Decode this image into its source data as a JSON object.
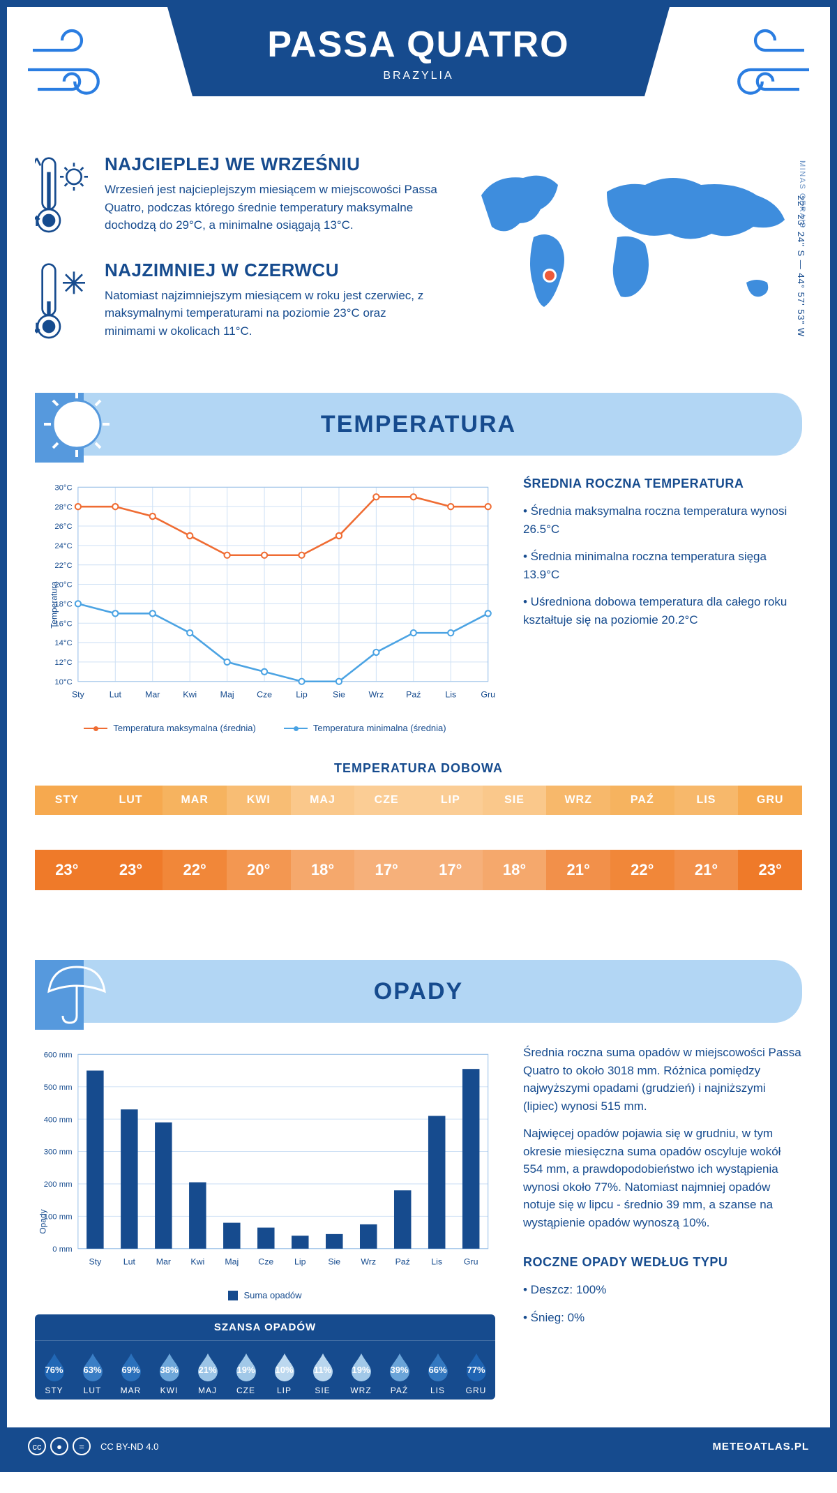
{
  "header": {
    "city": "PASSA QUATRO",
    "country": "BRAZYLIA"
  },
  "intro": {
    "hot": {
      "title": "NAJCIEPLEJ WE WRZEŚNIU",
      "text": "Wrzesień jest najcieplejszym miesiącem w miejscowości Passa Quatro, podczas którego średnie temperatury maksymalne dochodzą do 29°C, a minimalne osiągają 13°C."
    },
    "cold": {
      "title": "NAJZIMNIEJ W CZERWCU",
      "text": "Natomiast najzimniejszym miesiącem w roku jest czerwiec, z maksymalnymi temperaturami na poziomie 23°C oraz minimami w okolicach 11°C."
    },
    "region": "MINAS GERAIS",
    "coords": "22° 23' 24\" S — 44° 57' 53\" W"
  },
  "sections": {
    "temperature": "TEMPERATURA",
    "precipitation": "OPADY"
  },
  "months": [
    "Sty",
    "Lut",
    "Mar",
    "Kwi",
    "Maj",
    "Cze",
    "Lip",
    "Sie",
    "Wrz",
    "Paź",
    "Lis",
    "Gru"
  ],
  "months_upper": [
    "STY",
    "LUT",
    "MAR",
    "KWI",
    "MAJ",
    "CZE",
    "LIP",
    "SIE",
    "WRZ",
    "PAŹ",
    "LIS",
    "GRU"
  ],
  "temp_chart": {
    "type": "line",
    "y_label": "Temperatura",
    "y_min": 10,
    "y_max": 30,
    "y_step": 2,
    "series": {
      "max": {
        "label": "Temperatura maksymalna (średnia)",
        "color": "#ef6c33",
        "values": [
          28,
          28,
          27,
          25,
          23,
          23,
          23,
          25,
          29,
          29,
          28,
          28
        ]
      },
      "min": {
        "label": "Temperatura minimalna (średnia)",
        "color": "#4ba3e3",
        "values": [
          18,
          17,
          17,
          15,
          12,
          11,
          10,
          10,
          13,
          15,
          15,
          17
        ]
      }
    },
    "grid_color": "#cfe1f5",
    "background_color": "#ffffff"
  },
  "temp_side": {
    "title": "ŚREDNIA ROCZNA TEMPERATURA",
    "items": [
      "• Średnia maksymalna roczna temperatura wynosi 26.5°C",
      "• Średnia minimalna roczna temperatura sięga 13.9°C",
      "• Uśredniona dobowa temperatura dla całego roku kształtuje się na poziomie 20.2°C"
    ]
  },
  "temp_daily": {
    "title": "TEMPERATURA DOBOWA",
    "values": [
      "23°",
      "23°",
      "22°",
      "20°",
      "18°",
      "17°",
      "17°",
      "18°",
      "21°",
      "22°",
      "21°",
      "23°"
    ],
    "head_colors": [
      "#f6a94f",
      "#f6a94f",
      "#f6b35f",
      "#f8bd74",
      "#fac88b",
      "#fbcd95",
      "#fbcd95",
      "#fac88b",
      "#f7b86b",
      "#f6b35f",
      "#f7b86b",
      "#f6a94f"
    ],
    "val_colors": [
      "#ef7a29",
      "#ef7a29",
      "#f18739",
      "#f39751",
      "#f5a86c",
      "#f6b07a",
      "#f6b07a",
      "#f5a86c",
      "#f2904a",
      "#f18739",
      "#f2904a",
      "#ef7a29"
    ]
  },
  "precip_chart": {
    "type": "bar",
    "y_label": "Opady",
    "y_min": 0,
    "y_max": 600,
    "y_step": 100,
    "bar_color": "#164b8e",
    "grid_color": "#cfe1f5",
    "values": [
      550,
      430,
      390,
      205,
      80,
      65,
      40,
      45,
      75,
      180,
      410,
      555
    ],
    "legend": "Suma opadów"
  },
  "precip_side": {
    "p1": "Średnia roczna suma opadów w miejscowości Passa Quatro to około 3018 mm. Różnica pomiędzy najwyższymi opadami (grudzień) i najniższymi (lipiec) wynosi 515 mm.",
    "p2": "Najwięcej opadów pojawia się w grudniu, w tym okresie miesięczna suma opadów oscyluje wokół 554 mm, a prawdopodobieństwo ich wystąpienia wynosi około 77%. Natomiast najmniej opadów notuje się w lipcu - średnio 39 mm, a szanse na wystąpienie opadów wynoszą 10%.",
    "type_title": "ROCZNE OPADY WEDŁUG TYPU",
    "types": [
      "• Deszcz: 100%",
      "• Śnieg: 0%"
    ]
  },
  "precip_chance": {
    "title": "SZANSA OPADÓW",
    "values": [
      "76%",
      "63%",
      "69%",
      "38%",
      "21%",
      "19%",
      "10%",
      "11%",
      "19%",
      "39%",
      "66%",
      "77%"
    ],
    "drop_colors": [
      "#2167b5",
      "#3a7ec5",
      "#2a70bb",
      "#6da6d9",
      "#9bc4e6",
      "#a1c8e8",
      "#bcd8ef",
      "#b9d6ee",
      "#a1c8e8",
      "#6aa4d8",
      "#3378c0",
      "#1f64b3"
    ]
  },
  "footer": {
    "license": "CC BY-ND 4.0",
    "site": "METEOATLAS.PL"
  },
  "colors": {
    "primary": "#164b8e",
    "accent_light": "#b2d6f4",
    "map": "#3e8ddd",
    "marker": "#ed5a3a"
  }
}
